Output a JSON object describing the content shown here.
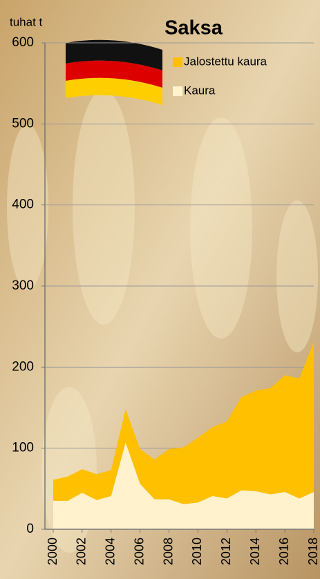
{
  "chart_data": {
    "type": "stacked_area",
    "title": "Saksa",
    "y_label": "tuhat t",
    "x": [
      2000,
      2001,
      2002,
      2003,
      2004,
      2005,
      2006,
      2007,
      2008,
      2009,
      2010,
      2011,
      2012,
      2013,
      2014,
      2015,
      2016,
      2017,
      2018
    ],
    "xlim": [
      2000,
      2018
    ],
    "xticks": [
      2000,
      2002,
      2004,
      2006,
      2008,
      2010,
      2012,
      2014,
      2016,
      2018
    ],
    "ylim": [
      0,
      600
    ],
    "yticks": [
      0,
      100,
      200,
      300,
      400,
      500,
      600
    ],
    "grid": true,
    "series": [
      {
        "name": "Kaura",
        "color": "#FFF2CC",
        "values": [
          35,
          35,
          45,
          36,
          41,
          107,
          56,
          37,
          37,
          31,
          33,
          41,
          38,
          48,
          47,
          43,
          46,
          38,
          46
        ]
      },
      {
        "name": "Jalostettu kaura",
        "color": "#FFC000",
        "values": [
          26,
          30,
          29,
          32,
          32,
          41,
          43,
          49,
          62,
          70,
          80,
          85,
          95,
          115,
          124,
          131,
          144,
          148,
          185
        ]
      }
    ]
  }
}
